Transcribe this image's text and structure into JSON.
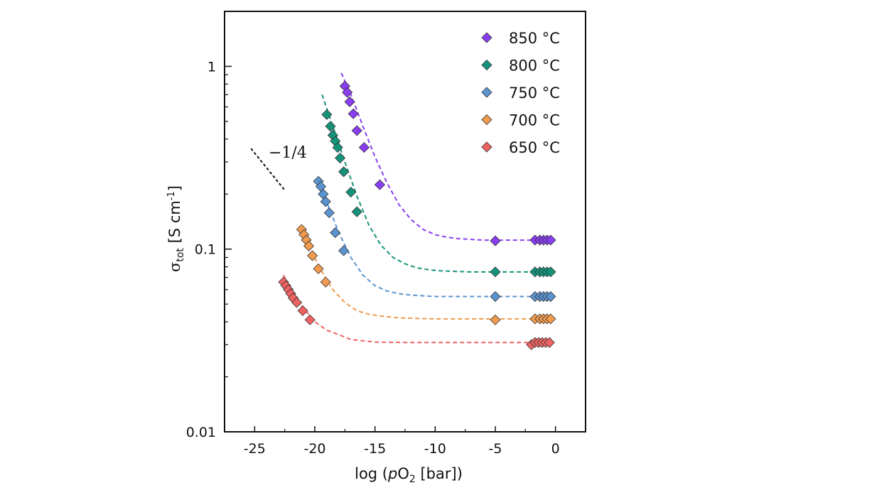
{
  "chart_data": {
    "type": "scatter",
    "x_scale": "linear",
    "y_scale": "log",
    "xlim": [
      -27.5,
      2.5
    ],
    "ylim": [
      0.01,
      2
    ],
    "x_ticks": [
      -25,
      -20,
      -15,
      -10,
      -5,
      0
    ],
    "x_tick_labels": [
      "-25",
      "-20",
      "-15",
      "-10",
      "-5",
      "0"
    ],
    "y_ticks": [
      0.01,
      0.1,
      1
    ],
    "y_tick_labels": [
      "0.01",
      "0.1",
      "1"
    ],
    "xlabel": {
      "pre": "log (",
      "italic": "p",
      "main": "O",
      "sub": "2",
      "post": " [bar])"
    },
    "ylabel": {
      "main": "σ",
      "sub": "tot",
      "unit": " [S cm",
      "sup": "-1",
      "close": "]"
    },
    "grid": false,
    "legend_position": "top-right",
    "annotation": {
      "text": "−1/4",
      "slope": -0.25,
      "line_from": [
        -25.3,
        0.355
      ],
      "line_to": [
        -22.5,
        0.21
      ]
    },
    "series": [
      {
        "name": "850 °C",
        "color": "#8a3ef2",
        "points": [
          [
            -17.5,
            0.78
          ],
          [
            -17.3,
            0.72
          ],
          [
            -17.1,
            0.64
          ],
          [
            -16.8,
            0.55
          ],
          [
            -16.5,
            0.445
          ],
          [
            -15.9,
            0.36
          ],
          [
            -14.6,
            0.225
          ],
          [
            -5,
            0.111
          ],
          [
            -1.7,
            0.112
          ],
          [
            -1.3,
            0.112
          ],
          [
            -1.0,
            0.112
          ],
          [
            -0.7,
            0.112
          ],
          [
            -0.4,
            0.112
          ]
        ],
        "fit": [
          [
            -17.8,
            0.92
          ],
          [
            -17.0,
            0.7
          ],
          [
            -16.0,
            0.47
          ],
          [
            -15.0,
            0.32
          ],
          [
            -14.0,
            0.23
          ],
          [
            -13.0,
            0.175
          ],
          [
            -12.0,
            0.145
          ],
          [
            -11.0,
            0.128
          ],
          [
            -10.0,
            0.12
          ],
          [
            -9.0,
            0.116
          ],
          [
            -8.0,
            0.114
          ],
          [
            -6.0,
            0.112
          ],
          [
            -4.0,
            0.112
          ],
          [
            -2.0,
            0.112
          ],
          [
            -0.4,
            0.112
          ]
        ]
      },
      {
        "name": "800 °C",
        "color": "#15937a",
        "points": [
          [
            -19.0,
            0.545
          ],
          [
            -18.7,
            0.47
          ],
          [
            -18.5,
            0.42
          ],
          [
            -18.3,
            0.39
          ],
          [
            -18.1,
            0.36
          ],
          [
            -17.9,
            0.315
          ],
          [
            -17.6,
            0.265
          ],
          [
            -17.0,
            0.205
          ],
          [
            -16.5,
            0.16
          ],
          [
            -5,
            0.075
          ],
          [
            -1.7,
            0.075
          ],
          [
            -1.3,
            0.075
          ],
          [
            -1.0,
            0.075
          ],
          [
            -0.7,
            0.075
          ],
          [
            -0.4,
            0.075
          ]
        ],
        "fit": [
          [
            -19.4,
            0.7
          ],
          [
            -18.5,
            0.47
          ],
          [
            -17.5,
            0.3
          ],
          [
            -16.5,
            0.195
          ],
          [
            -15.5,
            0.135
          ],
          [
            -14.5,
            0.105
          ],
          [
            -13.5,
            0.09
          ],
          [
            -12.5,
            0.083
          ],
          [
            -11.5,
            0.079
          ],
          [
            -10.5,
            0.077
          ],
          [
            -9.5,
            0.076
          ],
          [
            -7.0,
            0.075
          ],
          [
            -4.0,
            0.075
          ],
          [
            -2.0,
            0.075
          ],
          [
            -0.4,
            0.075
          ]
        ]
      },
      {
        "name": "750 °C",
        "color": "#5b93cf",
        "points": [
          [
            -19.7,
            0.235
          ],
          [
            -19.5,
            0.22
          ],
          [
            -19.3,
            0.2
          ],
          [
            -19.1,
            0.182
          ],
          [
            -18.8,
            0.158
          ],
          [
            -18.3,
            0.123
          ],
          [
            -17.6,
            0.098
          ],
          [
            -5,
            0.055
          ],
          [
            -1.7,
            0.055
          ],
          [
            -1.3,
            0.055
          ],
          [
            -1.0,
            0.055
          ],
          [
            -0.7,
            0.055
          ],
          [
            -0.4,
            0.055
          ]
        ],
        "fit": [
          [
            -19.8,
            0.245
          ],
          [
            -19.0,
            0.18
          ],
          [
            -18.0,
            0.123
          ],
          [
            -17.0,
            0.09
          ],
          [
            -16.0,
            0.072
          ],
          [
            -15.0,
            0.063
          ],
          [
            -14.0,
            0.059
          ],
          [
            -13.0,
            0.057
          ],
          [
            -12.0,
            0.056
          ],
          [
            -10.0,
            0.055
          ],
          [
            -7.0,
            0.055
          ],
          [
            -4.0,
            0.055
          ],
          [
            -2.0,
            0.055
          ],
          [
            -0.4,
            0.055
          ]
        ]
      },
      {
        "name": "700 °C",
        "color": "#f09a4e",
        "points": [
          [
            -21.1,
            0.128
          ],
          [
            -20.9,
            0.12
          ],
          [
            -20.7,
            0.112
          ],
          [
            -20.5,
            0.104
          ],
          [
            -20.2,
            0.092
          ],
          [
            -19.7,
            0.078
          ],
          [
            -19.1,
            0.066
          ],
          [
            -5,
            0.041
          ],
          [
            -1.7,
            0.0415
          ],
          [
            -1.3,
            0.0415
          ],
          [
            -1.0,
            0.0415
          ],
          [
            -0.7,
            0.0415
          ],
          [
            -0.4,
            0.0415
          ]
        ],
        "fit": [
          [
            -21.2,
            0.135
          ],
          [
            -20.5,
            0.104
          ],
          [
            -19.5,
            0.077
          ],
          [
            -18.5,
            0.06
          ],
          [
            -17.5,
            0.051
          ],
          [
            -16.5,
            0.046
          ],
          [
            -15.5,
            0.044
          ],
          [
            -14.5,
            0.043
          ],
          [
            -13.0,
            0.042
          ],
          [
            -10.0,
            0.0415
          ],
          [
            -7.0,
            0.0415
          ],
          [
            -4.0,
            0.0415
          ],
          [
            -2.0,
            0.0415
          ],
          [
            -0.4,
            0.0415
          ]
        ]
      },
      {
        "name": "650 °C",
        "color": "#ef6262",
        "points": [
          [
            -22.6,
            0.066
          ],
          [
            -22.4,
            0.063
          ],
          [
            -22.2,
            0.06
          ],
          [
            -22.0,
            0.057
          ],
          [
            -21.8,
            0.054
          ],
          [
            -21.5,
            0.051
          ],
          [
            -21.0,
            0.046
          ],
          [
            -20.4,
            0.041
          ],
          [
            -2.0,
            0.03
          ],
          [
            -1.7,
            0.0308
          ],
          [
            -1.4,
            0.0308
          ],
          [
            -1.1,
            0.0308
          ],
          [
            -0.8,
            0.0308
          ],
          [
            -0.5,
            0.0308
          ]
        ],
        "fit": [
          [
            -22.6,
            0.072
          ],
          [
            -22.0,
            0.06
          ],
          [
            -21.0,
            0.048
          ],
          [
            -20.0,
            0.04
          ],
          [
            -19.0,
            0.036
          ],
          [
            -18.0,
            0.034
          ],
          [
            -17.0,
            0.032
          ],
          [
            -15.0,
            0.031
          ],
          [
            -12.0,
            0.0308
          ],
          [
            -8.0,
            0.0308
          ],
          [
            -4.0,
            0.0308
          ],
          [
            -2.0,
            0.0308
          ],
          [
            -0.4,
            0.0308
          ]
        ]
      }
    ]
  }
}
